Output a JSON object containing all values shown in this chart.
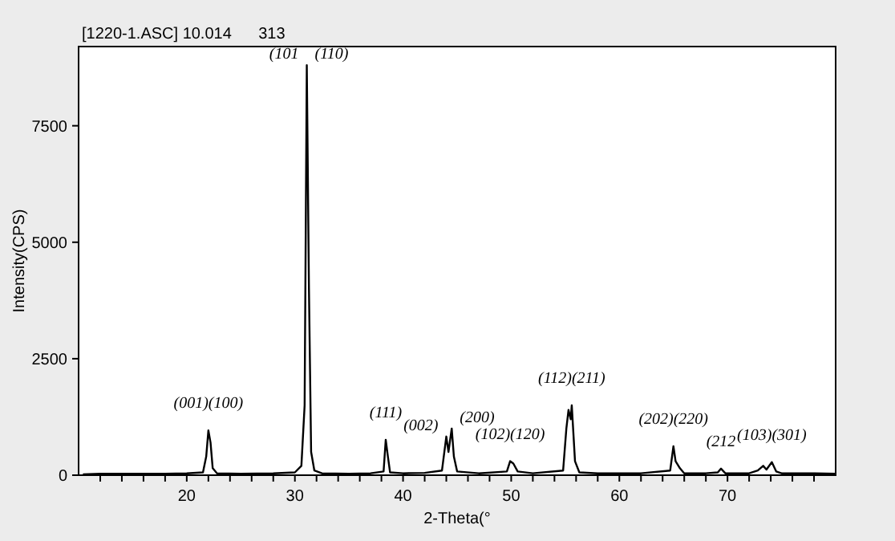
{
  "chart_data": {
    "type": "line",
    "title": "[1220-1.ASC] 10.014      313",
    "xlabel": "2-Theta(°",
    "ylabel": "Intensity(CPS)",
    "x": [
      10.4,
      12,
      14,
      16,
      18,
      20,
      21.5,
      21.8,
      22.0,
      22.2,
      22.4,
      22.8,
      25,
      28,
      30,
      30.6,
      30.9,
      31.1,
      31.3,
      31.5,
      31.8,
      32.5,
      35,
      37,
      38.2,
      38.4,
      38.6,
      38.8,
      40,
      42,
      43.6,
      44.0,
      44.2,
      44.5,
      44.7,
      45,
      47,
      49.6,
      49.9,
      50.2,
      50.6,
      52,
      54.8,
      55.1,
      55.3,
      55.5,
      55.6,
      55.9,
      56.3,
      58,
      62,
      64.7,
      65.0,
      65.2,
      65.6,
      66,
      68,
      69.1,
      69.4,
      69.8,
      72,
      72.8,
      73.3,
      73.6,
      74.1,
      74.5,
      75,
      78,
      80
    ],
    "series": [
      {
        "color": "#000000",
        "values": [
          20,
          30,
          30,
          30,
          30,
          40,
          60,
          400,
          960,
          700,
          150,
          40,
          30,
          40,
          60,
          200,
          1500,
          8800,
          4000,
          500,
          100,
          40,
          30,
          40,
          80,
          760,
          400,
          60,
          40,
          50,
          100,
          830,
          500,
          1000,
          400,
          80,
          40,
          80,
          300,
          250,
          80,
          40,
          100,
          1000,
          1400,
          1200,
          1500,
          300,
          60,
          40,
          40,
          100,
          620,
          300,
          150,
          40,
          40,
          60,
          140,
          40,
          40,
          100,
          200,
          120,
          280,
          80,
          40,
          40,
          30
        ]
      }
    ],
    "xlim": [
      10,
      80
    ],
    "ylim": [
      0,
      9200
    ],
    "xticks": [
      {
        "value": 12,
        "label": null
      },
      {
        "value": 14,
        "label": null
      },
      {
        "value": 16,
        "label": null
      },
      {
        "value": 18,
        "label": null
      },
      20,
      {
        "value": 22,
        "label": null
      },
      {
        "value": 24,
        "label": null
      },
      {
        "value": 26,
        "label": null
      },
      {
        "value": 28,
        "label": null
      },
      30,
      {
        "value": 32,
        "label": null
      },
      {
        "value": 34,
        "label": null
      },
      {
        "value": 36,
        "label": null
      },
      {
        "value": 38,
        "label": null
      },
      40,
      {
        "value": 42,
        "label": null
      },
      {
        "value": 44,
        "label": null
      },
      {
        "value": 46,
        "label": null
      },
      {
        "value": 48,
        "label": null
      },
      50,
      {
        "value": 52,
        "label": null
      },
      {
        "value": 54,
        "label": null
      },
      {
        "value": 56,
        "label": null
      },
      {
        "value": 58,
        "label": null
      },
      60,
      {
        "value": 62,
        "label": null
      },
      {
        "value": 64,
        "label": null
      },
      {
        "value": 66,
        "label": null
      },
      {
        "value": 68,
        "label": null
      },
      70,
      {
        "value": 72,
        "label": null
      },
      {
        "value": 74,
        "label": null
      },
      {
        "value": 76,
        "label": null
      },
      {
        "value": 78,
        "label": null
      }
    ],
    "yticks": [
      0,
      2500,
      5000,
      7500
    ],
    "grid": false,
    "marker": "none",
    "line_style": "solid",
    "annotations": [
      {
        "text": "(001)(100)",
        "x": 22.0,
        "y": 960
      },
      {
        "text": "(101",
        "x": 31.1,
        "y": 8800
      },
      {
        "text": "(110)",
        "x": 31.1,
        "y": 8800
      },
      {
        "text": "(111)",
        "x": 38.4,
        "y": 760
      },
      {
        "text": "(002)",
        "x": 44.0,
        "y": 830
      },
      {
        "text": "(200)",
        "x": 44.5,
        "y": 1000
      },
      {
        "text": "(102)(120)",
        "x": 49.9,
        "y": 300
      },
      {
        "text": "(112)(211)",
        "x": 55.6,
        "y": 1500
      },
      {
        "text": "(202)(220)",
        "x": 65.0,
        "y": 620
      },
      {
        "text": "(212",
        "x": 69.4,
        "y": 140
      },
      {
        "text": "(103)(301)",
        "x": 74.1,
        "y": 280
      }
    ]
  }
}
